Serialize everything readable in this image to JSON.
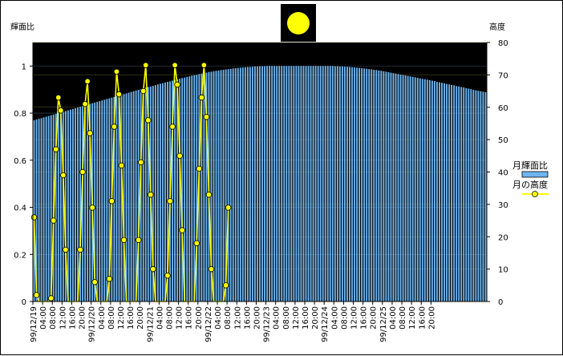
{
  "chart_data": {
    "type": "bar",
    "title": "",
    "y_left_label": "輝面比",
    "y_right_label": "高度",
    "ylim_left": [
      0,
      1.1
    ],
    "ylim_right": [
      0,
      80
    ],
    "yticks_left": [
      "0",
      "0.2",
      "0.4",
      "0.6",
      "0.8",
      "1"
    ],
    "yticks_right": [
      "0",
      "10",
      "20",
      "30",
      "40",
      "50",
      "60",
      "70",
      "80"
    ],
    "x_tick_labels": [
      "99/12/19",
      "04:00",
      "08:00",
      "12:00",
      "16:00",
      "20:00",
      "99/12/20",
      "04:00",
      "08:00",
      "12:00",
      "16:00",
      "20:00",
      "99/12/21",
      "04:00",
      "08:00",
      "12:00",
      "16:00",
      "20:00",
      "99/12/22",
      "04:00",
      "08:00",
      "12:00",
      "16:00",
      "20:00",
      "99/12/23",
      "04:00",
      "08:00",
      "12:00",
      "16:00",
      "20:00",
      "99/12/24",
      "04:00",
      "08:00",
      "12:00",
      "16:00",
      "20:00",
      "99/12/25",
      "04:00",
      "08:00",
      "12:00",
      "16:00",
      "20:00"
    ],
    "legend": {
      "position": "right",
      "bar_label": "月輝面比",
      "line_label": "月の高度"
    },
    "colors": {
      "bar": "#6fb5f0",
      "line": "#ffff00",
      "marker": "#ffff00",
      "plot_bg": "#000000"
    },
    "hours_per_sample": 1,
    "series": [
      {
        "name": "月輝面比",
        "kind": "bar",
        "axis": "left",
        "values": [
          0.77,
          0.773,
          0.776,
          0.779,
          0.782,
          0.785,
          0.788,
          0.791,
          0.794,
          0.797,
          0.8,
          0.803,
          0.806,
          0.809,
          0.812,
          0.815,
          0.818,
          0.821,
          0.824,
          0.827,
          0.83,
          0.833,
          0.836,
          0.839,
          0.842,
          0.845,
          0.848,
          0.851,
          0.854,
          0.857,
          0.86,
          0.863,
          0.866,
          0.869,
          0.872,
          0.875,
          0.878,
          0.881,
          0.884,
          0.887,
          0.89,
          0.893,
          0.896,
          0.899,
          0.902,
          0.905,
          0.908,
          0.911,
          0.913,
          0.916,
          0.919,
          0.922,
          0.925,
          0.927,
          0.93,
          0.933,
          0.935,
          0.938,
          0.941,
          0.943,
          0.946,
          0.949,
          0.951,
          0.954,
          0.956,
          0.959,
          0.961,
          0.963,
          0.966,
          0.968,
          0.97,
          0.972,
          0.975,
          0.976,
          0.978,
          0.98,
          0.981,
          0.983,
          0.984,
          0.986,
          0.987,
          0.988,
          0.99,
          0.991,
          0.992,
          0.993,
          0.994,
          0.995,
          0.996,
          0.996,
          0.997,
          0.998,
          0.998,
          0.999,
          0.999,
          0.999,
          1.0,
          1.0,
          1.0,
          1.0,
          1.0,
          1.0,
          1.0,
          1.0,
          1.0,
          1.0,
          1.0,
          1.0,
          1.0,
          1.0,
          1.0,
          1.0,
          1.0,
          1.0,
          1.0,
          1.0,
          1.0,
          1.0,
          1.0,
          1.0,
          1.0,
          1.0,
          1.0,
          1.0,
          0.999,
          0.999,
          0.998,
          0.998,
          0.997,
          0.997,
          0.996,
          0.995,
          0.994,
          0.993,
          0.992,
          0.991,
          0.99,
          0.989,
          0.987,
          0.986,
          0.984,
          0.983,
          0.981,
          0.98,
          0.978,
          0.976,
          0.974,
          0.972,
          0.97,
          0.968,
          0.966,
          0.964,
          0.962,
          0.96,
          0.958,
          0.956,
          0.954,
          0.952,
          0.95,
          0.948,
          0.946,
          0.944,
          0.942,
          0.94,
          0.938,
          0.936,
          0.933,
          0.931,
          0.929,
          0.927,
          0.924,
          0.922,
          0.92,
          0.918,
          0.915,
          0.913,
          0.911,
          0.909,
          0.906,
          0.904,
          0.902,
          0.899,
          0.897,
          0.895,
          0.893,
          0.891,
          0.889
        ]
      },
      {
        "name": "月の高度",
        "kind": "line",
        "axis": "right",
        "points": [
          [
            0,
            26
          ],
          [
            1,
            2
          ],
          [
            2,
            0
          ],
          [
            6,
            0
          ],
          [
            7,
            1
          ],
          [
            8,
            25
          ],
          [
            9,
            47
          ],
          [
            10,
            63
          ],
          [
            11,
            59
          ],
          [
            12,
            39
          ],
          [
            13,
            16
          ],
          [
            14,
            0
          ],
          [
            18,
            0
          ],
          [
            19,
            16
          ],
          [
            20,
            40
          ],
          [
            21,
            61
          ],
          [
            22,
            68
          ],
          [
            23,
            52
          ],
          [
            24,
            29
          ],
          [
            25,
            6
          ],
          [
            26,
            0
          ],
          [
            30,
            0
          ],
          [
            31,
            7
          ],
          [
            32,
            31
          ],
          [
            33,
            54
          ],
          [
            34,
            71
          ],
          [
            35,
            64
          ],
          [
            36,
            42
          ],
          [
            37,
            19
          ],
          [
            38,
            0
          ],
          [
            42,
            0
          ],
          [
            43,
            19
          ],
          [
            44,
            43
          ],
          [
            45,
            65
          ],
          [
            46,
            73
          ],
          [
            47,
            56
          ],
          [
            48,
            33
          ],
          [
            49,
            10
          ],
          [
            50,
            0
          ],
          [
            54,
            0
          ],
          [
            55,
            8
          ],
          [
            56,
            31
          ],
          [
            57,
            54
          ],
          [
            58,
            73
          ],
          [
            59,
            67
          ],
          [
            60,
            45
          ],
          [
            61,
            22
          ],
          [
            62,
            0
          ],
          [
            66,
            0
          ],
          [
            67,
            18
          ],
          [
            68,
            41
          ],
          [
            69,
            63
          ],
          [
            70,
            73
          ],
          [
            71,
            57
          ],
          [
            72,
            33
          ],
          [
            73,
            10
          ],
          [
            74,
            0
          ],
          [
            78,
            0
          ],
          [
            79,
            5
          ],
          [
            80,
            29
          ]
        ]
      }
    ]
  }
}
